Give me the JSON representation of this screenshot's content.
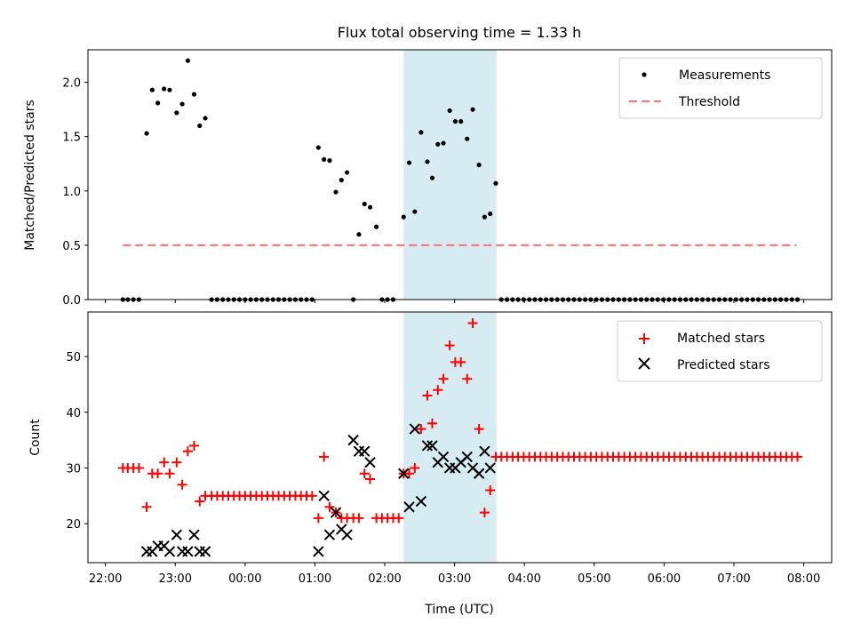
{
  "chart_data": {
    "title": "Flux total observing time = 1.33 h",
    "xlabel": "Time (UTC)",
    "x_unit": "hours since 22:00 UTC",
    "xlim": [
      -0.25,
      10.4
    ],
    "x_ticks": [
      {
        "value": 0,
        "label": "22:00"
      },
      {
        "value": 1,
        "label": "23:00"
      },
      {
        "value": 2,
        "label": "00:00"
      },
      {
        "value": 3,
        "label": "01:00"
      },
      {
        "value": 4,
        "label": "02:00"
      },
      {
        "value": 5,
        "label": "03:00"
      },
      {
        "value": 6,
        "label": "04:00"
      },
      {
        "value": 7,
        "label": "05:00"
      },
      {
        "value": 8,
        "label": "06:00"
      },
      {
        "value": 9,
        "label": "07:00"
      },
      {
        "value": 10,
        "label": "08:00"
      }
    ],
    "highlight_span": [
      4.27,
      5.6
    ],
    "highlight_color": "#add8e6",
    "top": {
      "type": "scatter",
      "ylabel": "Matched/Predicted stars",
      "ylim": [
        0,
        2.3
      ],
      "yticks": [
        "0.0",
        "0.5",
        "1.0",
        "1.5",
        "2.0"
      ],
      "threshold": {
        "name": "Threshold",
        "value": 0.5,
        "x_range": [
          0.25,
          9.9
        ],
        "color": "#ff7070"
      },
      "legend": [
        {
          "key": "measurements",
          "label": "Measurements"
        },
        {
          "key": "threshold",
          "label": "Threshold"
        }
      ],
      "series": [
        {
          "name": "Measurements",
          "color": "#000000",
          "points": [
            [
              0.25,
              0
            ],
            [
              0.32,
              0
            ],
            [
              0.4,
              0
            ],
            [
              0.48,
              0
            ],
            [
              0.59,
              1.53
            ],
            [
              0.67,
              1.93
            ],
            [
              0.75,
              1.81
            ],
            [
              0.84,
              1.94
            ],
            [
              0.92,
              1.93
            ],
            [
              1.02,
              1.72
            ],
            [
              1.1,
              1.8
            ],
            [
              1.18,
              2.2
            ],
            [
              1.27,
              1.89
            ],
            [
              1.35,
              1.6
            ],
            [
              1.43,
              1.67
            ],
            [
              1.52,
              0
            ],
            [
              1.6,
              0
            ],
            [
              1.68,
              0
            ],
            [
              1.76,
              0
            ],
            [
              1.84,
              0
            ],
            [
              1.92,
              0
            ],
            [
              2.0,
              0
            ],
            [
              2.08,
              0
            ],
            [
              2.16,
              0
            ],
            [
              2.24,
              0
            ],
            [
              2.32,
              0
            ],
            [
              2.4,
              0
            ],
            [
              2.48,
              0
            ],
            [
              2.56,
              0
            ],
            [
              2.64,
              0
            ],
            [
              2.72,
              0
            ],
            [
              2.8,
              0
            ],
            [
              2.88,
              0
            ],
            [
              2.96,
              0
            ],
            [
              3.05,
              1.4
            ],
            [
              3.13,
              1.29
            ],
            [
              3.21,
              1.28
            ],
            [
              3.3,
              0.99
            ],
            [
              3.38,
              1.1
            ],
            [
              3.46,
              1.17
            ],
            [
              3.55,
              0
            ],
            [
              3.63,
              0.6
            ],
            [
              3.71,
              0.88
            ],
            [
              3.79,
              0.85
            ],
            [
              3.88,
              0.67
            ],
            [
              3.96,
              0
            ],
            [
              4.04,
              0
            ],
            [
              4.12,
              0
            ],
            [
              4.27,
              0.76
            ],
            [
              4.35,
              1.26
            ],
            [
              4.43,
              0.81
            ],
            [
              4.52,
              1.54
            ],
            [
              4.61,
              1.27
            ],
            [
              4.68,
              1.12
            ],
            [
              4.76,
              1.43
            ],
            [
              4.84,
              1.44
            ],
            [
              4.93,
              1.74
            ],
            [
              5.01,
              1.64
            ],
            [
              5.09,
              1.64
            ],
            [
              5.18,
              1.48
            ],
            [
              5.26,
              1.75
            ],
            [
              5.35,
              1.24
            ],
            [
              5.43,
              0.76
            ],
            [
              5.51,
              0.79
            ],
            [
              5.59,
              1.07
            ],
            [
              5.67,
              0
            ],
            [
              5.75,
              0
            ],
            [
              5.83,
              0
            ],
            [
              5.91,
              0
            ],
            [
              5.99,
              0
            ],
            [
              6.07,
              0
            ],
            [
              6.15,
              0
            ],
            [
              6.23,
              0
            ],
            [
              6.31,
              0
            ],
            [
              6.39,
              0
            ],
            [
              6.47,
              0
            ],
            [
              6.55,
              0
            ],
            [
              6.63,
              0
            ],
            [
              6.71,
              0
            ],
            [
              6.79,
              0
            ],
            [
              6.87,
              0
            ],
            [
              6.95,
              0
            ],
            [
              7.03,
              0
            ],
            [
              7.11,
              0
            ],
            [
              7.19,
              0
            ],
            [
              7.27,
              0
            ],
            [
              7.35,
              0
            ],
            [
              7.43,
              0
            ],
            [
              7.51,
              0
            ],
            [
              7.59,
              0
            ],
            [
              7.67,
              0
            ],
            [
              7.75,
              0
            ],
            [
              7.83,
              0
            ],
            [
              7.91,
              0
            ],
            [
              7.99,
              0
            ],
            [
              8.07,
              0
            ],
            [
              8.15,
              0
            ],
            [
              8.23,
              0
            ],
            [
              8.31,
              0
            ],
            [
              8.39,
              0
            ],
            [
              8.47,
              0
            ],
            [
              8.55,
              0
            ],
            [
              8.63,
              0
            ],
            [
              8.71,
              0
            ],
            [
              8.79,
              0
            ],
            [
              8.87,
              0
            ],
            [
              8.95,
              0
            ],
            [
              9.03,
              0
            ],
            [
              9.11,
              0
            ],
            [
              9.19,
              0
            ],
            [
              9.27,
              0
            ],
            [
              9.35,
              0
            ],
            [
              9.43,
              0
            ],
            [
              9.51,
              0
            ],
            [
              9.59,
              0
            ],
            [
              9.67,
              0
            ],
            [
              9.75,
              0
            ],
            [
              9.83,
              0
            ],
            [
              9.91,
              0
            ]
          ]
        }
      ]
    },
    "bottom": {
      "type": "scatter",
      "ylabel": "Count",
      "ylim": [
        13,
        58
      ],
      "yticks": [
        "20",
        "30",
        "40",
        "50"
      ],
      "legend": [
        {
          "key": "matched",
          "label": "Matched stars"
        },
        {
          "key": "predicted",
          "label": "Predicted stars"
        }
      ],
      "matched": {
        "name": "Matched stars",
        "color": "#ff0000",
        "points": [
          [
            0.25,
            30
          ],
          [
            0.32,
            30
          ],
          [
            0.4,
            30
          ],
          [
            0.48,
            30
          ],
          [
            0.59,
            23
          ],
          [
            0.67,
            29
          ],
          [
            0.75,
            29
          ],
          [
            0.84,
            31
          ],
          [
            0.92,
            29
          ],
          [
            1.02,
            31
          ],
          [
            1.1,
            27
          ],
          [
            1.18,
            33
          ],
          [
            1.27,
            34
          ],
          [
            1.35,
            24
          ],
          [
            1.43,
            25
          ],
          [
            1.52,
            25
          ],
          [
            1.6,
            25
          ],
          [
            1.68,
            25
          ],
          [
            1.76,
            25
          ],
          [
            1.84,
            25
          ],
          [
            1.92,
            25
          ],
          [
            2.0,
            25
          ],
          [
            2.08,
            25
          ],
          [
            2.16,
            25
          ],
          [
            2.24,
            25
          ],
          [
            2.32,
            25
          ],
          [
            2.4,
            25
          ],
          [
            2.48,
            25
          ],
          [
            2.56,
            25
          ],
          [
            2.64,
            25
          ],
          [
            2.72,
            25
          ],
          [
            2.8,
            25
          ],
          [
            2.88,
            25
          ],
          [
            2.96,
            25
          ],
          [
            3.05,
            21
          ],
          [
            3.13,
            32
          ],
          [
            3.21,
            23
          ],
          [
            3.3,
            22
          ],
          [
            3.38,
            21
          ],
          [
            3.46,
            21
          ],
          [
            3.55,
            21
          ],
          [
            3.63,
            21
          ],
          [
            3.71,
            29
          ],
          [
            3.79,
            28
          ],
          [
            3.88,
            21
          ],
          [
            3.96,
            21
          ],
          [
            4.04,
            21
          ],
          [
            4.12,
            21
          ],
          [
            4.2,
            21
          ],
          [
            4.27,
            29
          ],
          [
            4.35,
            29
          ],
          [
            4.43,
            30
          ],
          [
            4.52,
            37
          ],
          [
            4.61,
            43
          ],
          [
            4.68,
            38
          ],
          [
            4.76,
            44
          ],
          [
            4.84,
            46
          ],
          [
            4.93,
            52
          ],
          [
            5.01,
            49
          ],
          [
            5.09,
            49
          ],
          [
            5.18,
            46
          ],
          [
            5.26,
            56
          ],
          [
            5.35,
            37
          ],
          [
            5.43,
            22
          ],
          [
            5.51,
            26
          ],
          [
            5.59,
            32
          ],
          [
            5.67,
            32
          ],
          [
            5.75,
            32
          ],
          [
            5.83,
            32
          ],
          [
            5.91,
            32
          ],
          [
            5.99,
            32
          ],
          [
            6.07,
            32
          ],
          [
            6.15,
            32
          ],
          [
            6.23,
            32
          ],
          [
            6.31,
            32
          ],
          [
            6.39,
            32
          ],
          [
            6.47,
            32
          ],
          [
            6.55,
            32
          ],
          [
            6.63,
            32
          ],
          [
            6.71,
            32
          ],
          [
            6.79,
            32
          ],
          [
            6.87,
            32
          ],
          [
            6.95,
            32
          ],
          [
            7.03,
            32
          ],
          [
            7.11,
            32
          ],
          [
            7.19,
            32
          ],
          [
            7.27,
            32
          ],
          [
            7.35,
            32
          ],
          [
            7.43,
            32
          ],
          [
            7.51,
            32
          ],
          [
            7.59,
            32
          ],
          [
            7.67,
            32
          ],
          [
            7.75,
            32
          ],
          [
            7.83,
            32
          ],
          [
            7.91,
            32
          ],
          [
            7.99,
            32
          ],
          [
            8.07,
            32
          ],
          [
            8.15,
            32
          ],
          [
            8.23,
            32
          ],
          [
            8.31,
            32
          ],
          [
            8.39,
            32
          ],
          [
            8.47,
            32
          ],
          [
            8.55,
            32
          ],
          [
            8.63,
            32
          ],
          [
            8.71,
            32
          ],
          [
            8.79,
            32
          ],
          [
            8.87,
            32
          ],
          [
            8.95,
            32
          ],
          [
            9.03,
            32
          ],
          [
            9.11,
            32
          ],
          [
            9.19,
            32
          ],
          [
            9.27,
            32
          ],
          [
            9.35,
            32
          ],
          [
            9.43,
            32
          ],
          [
            9.51,
            32
          ],
          [
            9.59,
            32
          ],
          [
            9.67,
            32
          ],
          [
            9.75,
            32
          ],
          [
            9.83,
            32
          ],
          [
            9.91,
            32
          ]
        ]
      },
      "predicted": {
        "name": "Predicted stars",
        "color": "#000000",
        "points": [
          [
            0.59,
            15
          ],
          [
            0.67,
            15
          ],
          [
            0.75,
            16
          ],
          [
            0.84,
            16
          ],
          [
            0.92,
            15
          ],
          [
            1.02,
            18
          ],
          [
            1.1,
            15
          ],
          [
            1.18,
            15
          ],
          [
            1.27,
            18
          ],
          [
            1.35,
            15
          ],
          [
            1.43,
            15
          ],
          [
            3.05,
            15
          ],
          [
            3.13,
            25
          ],
          [
            3.21,
            18
          ],
          [
            3.3,
            22
          ],
          [
            3.38,
            19
          ],
          [
            3.46,
            18
          ],
          [
            3.55,
            35
          ],
          [
            3.63,
            33
          ],
          [
            3.71,
            33
          ],
          [
            3.79,
            31
          ],
          [
            4.27,
            29
          ],
          [
            4.35,
            23
          ],
          [
            4.43,
            37
          ],
          [
            4.52,
            24
          ],
          [
            4.61,
            34
          ],
          [
            4.68,
            34
          ],
          [
            4.76,
            31
          ],
          [
            4.84,
            32
          ],
          [
            4.93,
            30
          ],
          [
            5.01,
            30
          ],
          [
            5.09,
            31
          ],
          [
            5.18,
            32
          ],
          [
            5.26,
            30
          ],
          [
            5.35,
            29
          ],
          [
            5.43,
            33
          ],
          [
            5.51,
            30
          ]
        ]
      }
    }
  }
}
